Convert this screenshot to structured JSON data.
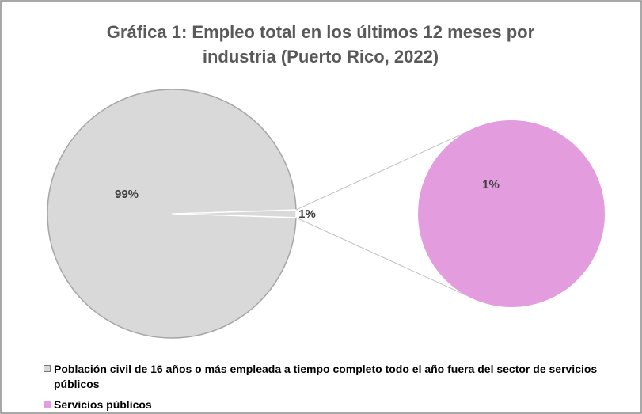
{
  "chart_data": {
    "type": "pie",
    "title": "Gráfica 1: Empleo total en los últimos 12 meses por industria (Puerto Rico, 2022)",
    "categories": [
      "Población civil de 16 años o más empleada a tiempo completo todo el año fuera del sector de servicios públicos",
      "Servicios públicos"
    ],
    "values": [
      99,
      1
    ],
    "value_labels": [
      "99%",
      "1%"
    ],
    "colors": [
      "#d9d9d9",
      "#e39ddf"
    ]
  }
}
